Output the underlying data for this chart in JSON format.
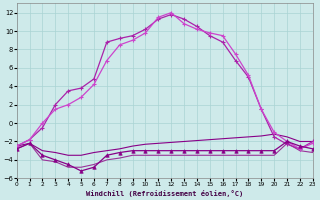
{
  "xlabel": "Windchill (Refroidissement éolien,°C)",
  "xlim": [
    0,
    23
  ],
  "ylim": [
    -6,
    13
  ],
  "xticks": [
    0,
    1,
    2,
    3,
    4,
    5,
    6,
    7,
    8,
    9,
    10,
    11,
    12,
    13,
    14,
    15,
    16,
    17,
    18,
    19,
    20,
    21,
    22,
    23
  ],
  "yticks": [
    -6,
    -4,
    -2,
    0,
    2,
    4,
    6,
    8,
    10,
    12
  ],
  "bg_color": "#ceeaea",
  "grid_color": "#aad4d4",
  "col_dark": "#880088",
  "col_mid": "#aa22aa",
  "col_light": "#cc44cc",
  "col_flat": "#993399",
  "s1_x": [
    0,
    1,
    2,
    3,
    4,
    5,
    6,
    7,
    8,
    9,
    10,
    11,
    12,
    13,
    14,
    15,
    16,
    17,
    18,
    19,
    20,
    21,
    22,
    23
  ],
  "s1_y": [
    -2.5,
    -1.8,
    -0.5,
    2.0,
    3.5,
    3.8,
    4.8,
    8.8,
    9.2,
    9.5,
    10.2,
    11.3,
    11.8,
    11.3,
    10.5,
    9.5,
    8.8,
    6.8,
    5.0,
    1.5,
    -1.5,
    -2.3,
    -2.8,
    -2.0
  ],
  "s2_x": [
    0,
    1,
    2,
    3,
    4,
    5,
    6,
    7,
    8,
    9,
    10,
    11,
    12,
    13,
    14,
    15,
    16,
    17,
    18,
    19,
    20,
    21,
    22,
    23
  ],
  "s2_y": [
    -2.5,
    -1.8,
    0.0,
    1.5,
    2.0,
    2.8,
    4.2,
    6.8,
    8.5,
    9.0,
    9.8,
    11.5,
    12.0,
    10.8,
    10.2,
    9.8,
    9.5,
    7.5,
    5.2,
    1.5,
    -1.0,
    -2.0,
    -2.8,
    -2.2
  ],
  "s3_x": [
    0,
    1,
    2,
    3,
    4,
    5,
    6,
    7,
    8,
    9,
    10,
    11,
    12,
    13,
    14,
    15,
    16,
    17,
    18,
    19,
    20,
    21,
    22,
    23
  ],
  "s3_y": [
    -2.5,
    -2.2,
    -3.0,
    -3.2,
    -3.5,
    -3.5,
    -3.2,
    -3.0,
    -2.8,
    -2.5,
    -2.3,
    -2.2,
    -2.1,
    -2.0,
    -1.9,
    -1.8,
    -1.7,
    -1.6,
    -1.5,
    -1.4,
    -1.2,
    -1.5,
    -2.0,
    -2.0
  ],
  "s4_x": [
    0,
    1,
    2,
    3,
    4,
    5,
    6,
    7,
    8,
    9,
    10,
    11,
    12,
    13,
    14,
    15,
    16,
    17,
    18,
    19,
    20,
    21,
    22,
    23
  ],
  "s4_y": [
    -2.8,
    -2.2,
    -3.5,
    -4.0,
    -4.5,
    -5.2,
    -4.8,
    -3.5,
    -3.2,
    -3.0,
    -3.0,
    -3.0,
    -3.0,
    -3.0,
    -3.0,
    -3.0,
    -3.0,
    -3.0,
    -3.0,
    -3.0,
    -3.0,
    -2.0,
    -2.5,
    -2.8
  ],
  "s5_x": [
    0,
    1,
    2,
    3,
    4,
    5,
    6,
    7,
    8,
    9,
    10,
    11,
    12,
    13,
    14,
    15,
    16,
    17,
    18,
    19,
    20,
    21,
    22,
    23
  ],
  "s5_y": [
    -2.8,
    -2.2,
    -4.0,
    -4.2,
    -4.8,
    -4.8,
    -4.5,
    -4.0,
    -3.8,
    -3.5,
    -3.5,
    -3.5,
    -3.5,
    -3.5,
    -3.5,
    -3.5,
    -3.5,
    -3.5,
    -3.5,
    -3.5,
    -3.5,
    -2.2,
    -3.0,
    -3.2
  ]
}
